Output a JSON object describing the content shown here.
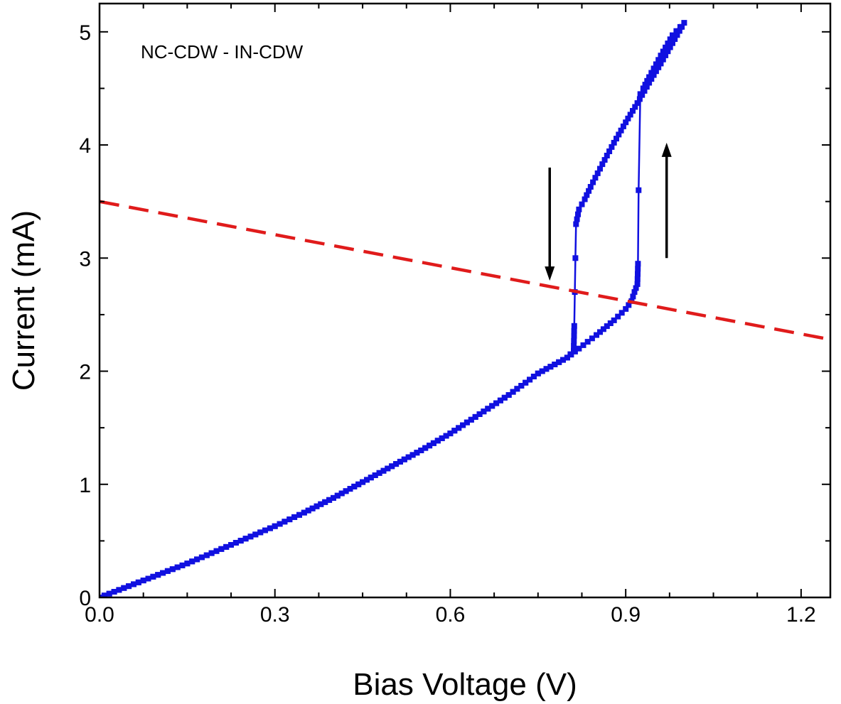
{
  "chart_data": {
    "type": "line",
    "xlabel": "Bias Voltage (V)",
    "ylabel": "Current (mA)",
    "xlim": [
      0.0,
      1.25
    ],
    "ylim": [
      0,
      5.25
    ],
    "xticks": [
      0.0,
      0.3,
      0.6,
      0.9,
      1.2
    ],
    "xtick_labels": [
      "0.0",
      "0.3",
      "0.6",
      "0.9",
      "1.2"
    ],
    "yticks": [
      0,
      1,
      2,
      3,
      4,
      5
    ],
    "ytick_labels": [
      "0",
      "1",
      "2",
      "3",
      "4",
      "5"
    ],
    "x_minor_step": 0.075,
    "y_minor_step": 0.5,
    "grid": false,
    "annotation": "NC-CDW - IN-CDW",
    "series": [
      {
        "color": "#1010e0",
        "style": "line-with-square-markers",
        "x": [
          0.0,
          0.05,
          0.1,
          0.15,
          0.2,
          0.25,
          0.3,
          0.35,
          0.4,
          0.45,
          0.5,
          0.55,
          0.6,
          0.65,
          0.7,
          0.75,
          0.8,
          0.82,
          0.85,
          0.88,
          0.9,
          0.91,
          0.915,
          0.92,
          0.921,
          0.922,
          0.925,
          0.93,
          0.94,
          0.96,
          0.98,
          1.0,
          0.98,
          0.96,
          0.94,
          0.92,
          0.9,
          0.88,
          0.86,
          0.84,
          0.83,
          0.82,
          0.815,
          0.814,
          0.813,
          0.812,
          0.811,
          0.8,
          0.75,
          0.7,
          0.65,
          0.6,
          0.55,
          0.5,
          0.45,
          0.4,
          0.35,
          0.3,
          0.25,
          0.2,
          0.15,
          0.1,
          0.05,
          0.0
        ],
        "y": [
          0.0,
          0.1,
          0.2,
          0.3,
          0.41,
          0.52,
          0.63,
          0.75,
          0.88,
          1.02,
          1.16,
          1.3,
          1.45,
          1.62,
          1.79,
          1.98,
          2.12,
          2.2,
          2.32,
          2.45,
          2.55,
          2.62,
          2.7,
          2.77,
          2.95,
          3.6,
          4.45,
          4.5,
          4.6,
          4.79,
          4.97,
          5.08,
          4.9,
          4.72,
          4.55,
          4.37,
          4.2,
          4.02,
          3.83,
          3.63,
          3.52,
          3.43,
          3.3,
          3.0,
          2.7,
          2.4,
          2.18,
          2.12,
          1.98,
          1.79,
          1.62,
          1.45,
          1.3,
          1.16,
          1.02,
          0.88,
          0.75,
          0.63,
          0.52,
          0.41,
          0.3,
          0.2,
          0.1,
          0.0
        ]
      },
      {
        "color": "#e01b1b",
        "style": "dashed",
        "x": [
          0.0,
          1.25
        ],
        "y": [
          3.5,
          2.28
        ]
      }
    ],
    "arrows": [
      {
        "direction": "down",
        "x": 0.77,
        "y_from": 3.8,
        "y_to": 2.8,
        "color": "#000000"
      },
      {
        "direction": "up",
        "x": 0.97,
        "y_from": 3.0,
        "y_to": 4.02,
        "color": "#000000"
      }
    ]
  }
}
